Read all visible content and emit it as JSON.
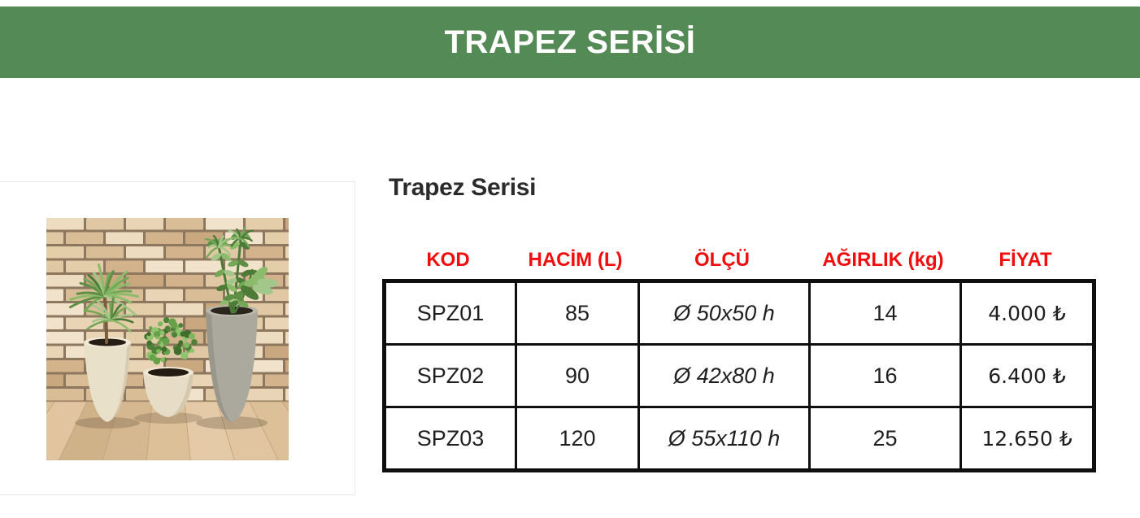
{
  "banner": {
    "title": "TRAPEZ SERİSİ",
    "bg_color": "#548a55",
    "text_color": "#ffffff"
  },
  "product": {
    "heading": "Trapez Serisi",
    "photo_name": "trapez-planters-photo"
  },
  "table": {
    "header_color": "#f20d0d",
    "border_color": "#0f0f0f",
    "headers": [
      "KOD",
      "HACİM (L)",
      "ÖLÇÜ",
      "AĞIRLIK (kg)",
      "FİYAT"
    ],
    "rows": [
      {
        "kod": "SPZ01",
        "hacim": "85",
        "olcu": "Ø 50x50 h",
        "agirlik": "14",
        "fiyat": "4.000 ₺"
      },
      {
        "kod": "SPZ02",
        "hacim": "90",
        "olcu": "Ø 42x80 h",
        "agirlik": "16",
        "fiyat": "6.400 ₺"
      },
      {
        "kod": "SPZ03",
        "hacim": "120",
        "olcu": "Ø 55x110 h",
        "agirlik": "25",
        "fiyat": "12.650 ₺"
      }
    ]
  }
}
